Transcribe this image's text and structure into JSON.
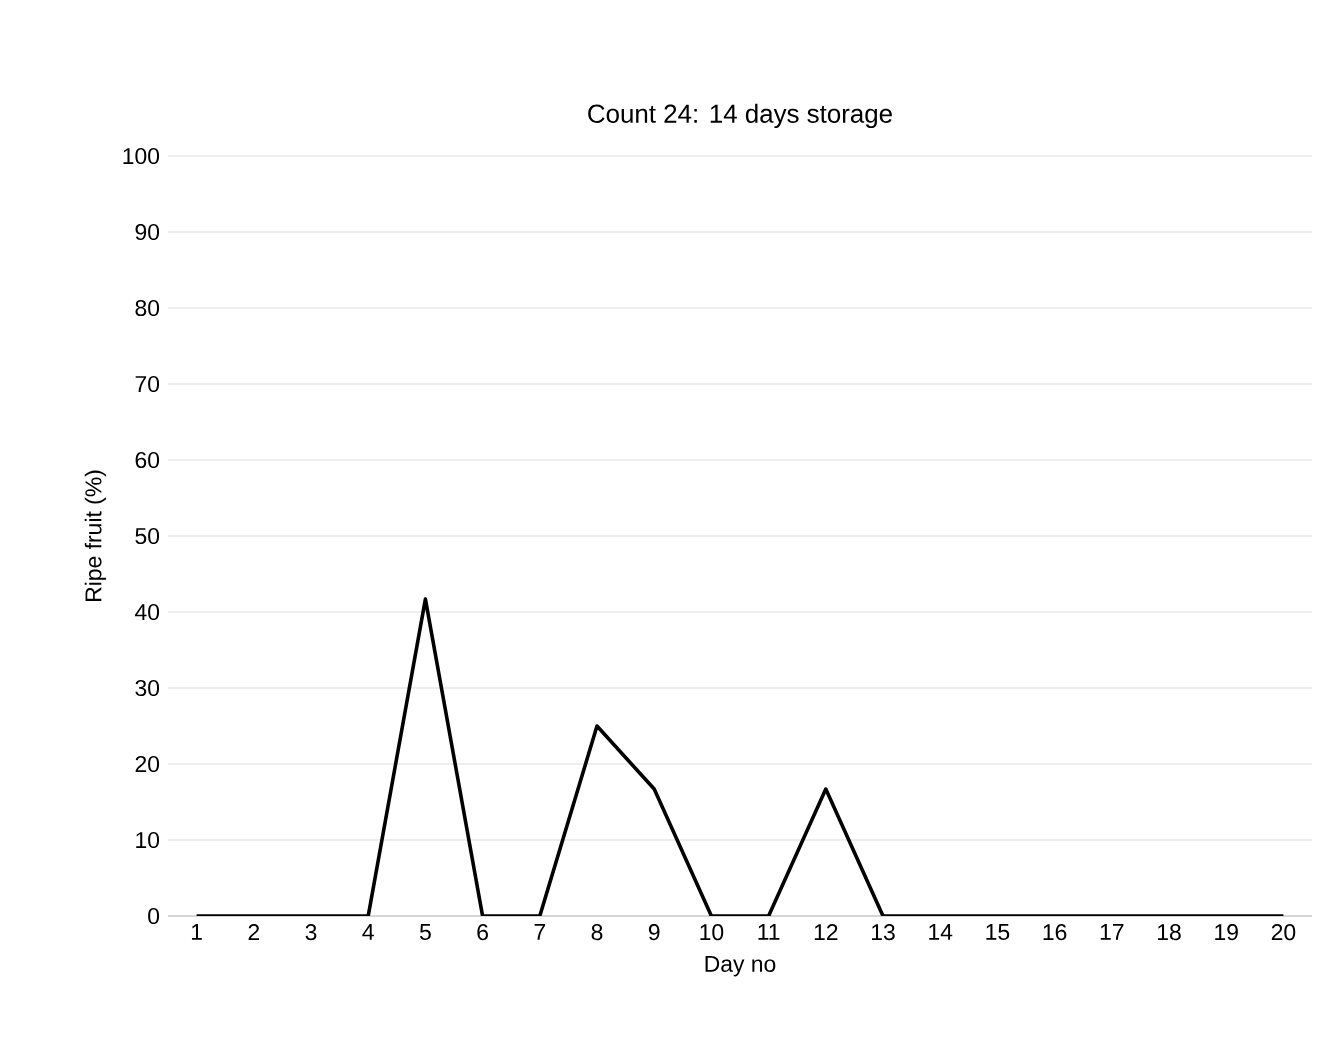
{
  "chart_data": {
    "type": "line",
    "title": "Count 24: 14 days storage",
    "xlabel": "Day no",
    "ylabel": "Ripe fruit (%)",
    "categories": [
      "1",
      "2",
      "3",
      "4",
      "5",
      "6",
      "7",
      "8",
      "9",
      "10",
      "11",
      "12",
      "13",
      "14",
      "15",
      "16",
      "17",
      "18",
      "19",
      "20"
    ],
    "series": [
      {
        "color": "#000000",
        "values": [
          0,
          0,
          0,
          0,
          41.7,
          0,
          0,
          25,
          16.7,
          0,
          0,
          16.7,
          0,
          0,
          0,
          0,
          0,
          0,
          0,
          0
        ]
      }
    ],
    "ylim": [
      0,
      100
    ],
    "yticks": [
      0,
      10,
      20,
      30,
      40,
      50,
      60,
      70,
      80,
      90,
      100
    ],
    "grid": "y"
  }
}
